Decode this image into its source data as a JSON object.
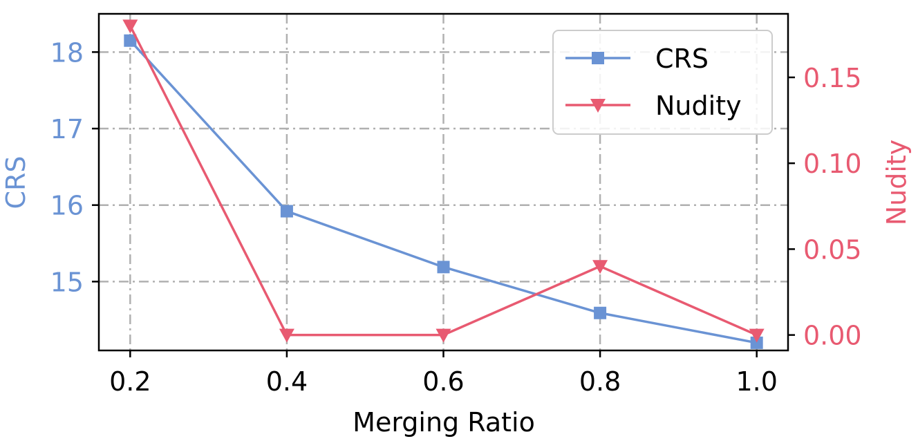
{
  "chart_data": {
    "type": "line",
    "title": "",
    "xlabel": "Merging Ratio",
    "ylabel_left": "CRS",
    "ylabel_right": "Nudity",
    "x": [
      0.2,
      0.4,
      0.6,
      0.8,
      1.0
    ],
    "x_tick_labels": [
      "0.2",
      "0.4",
      "0.6",
      "0.8",
      "1.0"
    ],
    "xlim": [
      0.16,
      1.04
    ],
    "y_left_ticks": [
      15,
      16,
      17,
      18
    ],
    "y_left_tick_labels": [
      "15",
      "16",
      "17",
      "18"
    ],
    "y_left_lim": [
      14.1,
      18.5
    ],
    "y_right_ticks": [
      0.0,
      0.05,
      0.1,
      0.15
    ],
    "y_right_tick_labels": [
      "0.00",
      "0.05",
      "0.10",
      "0.15"
    ],
    "y_right_lim": [
      -0.009,
      0.187
    ],
    "grid": true,
    "legend_position": "top-right",
    "series": [
      {
        "name": "CRS",
        "axis": "left",
        "marker": "square",
        "color": "#6a93d4",
        "values": [
          18.15,
          15.92,
          15.19,
          14.59,
          14.2
        ]
      },
      {
        "name": "Nudity",
        "axis": "right",
        "marker": "triangle-down",
        "color": "#e85a71",
        "values": [
          0.18,
          0.0,
          0.0,
          0.04,
          0.0
        ]
      }
    ],
    "colors": {
      "left_axis": "#6a93d4",
      "right_axis": "#e85a71",
      "tick": "#000000"
    }
  }
}
